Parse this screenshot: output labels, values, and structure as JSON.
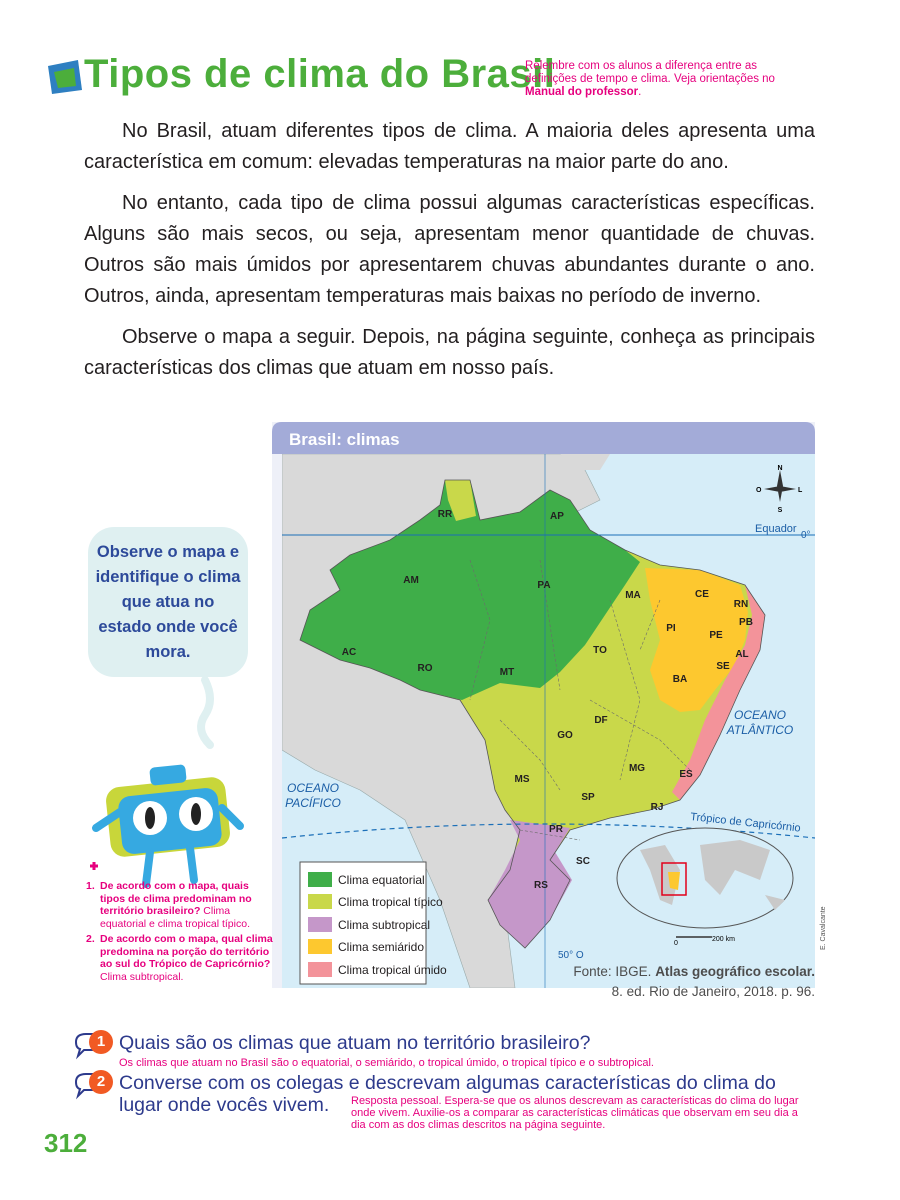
{
  "header": {
    "title": "Tipos de clima do Brasil",
    "teacher_note": "Relembre com os alunos a diferença entre as definições de tempo e clima. Veja orientações no",
    "teacher_note_bold": "Manual do professor",
    "teacher_note_end": "."
  },
  "body": {
    "paragraphs": [
      "No Brasil, atuam diferentes tipos de clima. A maioria deles apresenta uma característica em comum: elevadas temperaturas na maior parte do ano.",
      "No entanto, cada tipo de clima possui algumas características específicas. Alguns são mais secos, ou seja, apresentam menor quantidade de chuvas. Outros são mais úmidos por apresentarem chuvas abundantes durante o ano. Outros, ainda, apresentam temperaturas mais baixas no período de inverno.",
      "Observe o mapa a seguir. Depois, na página seguinte, conheça as principais características dos climas que atuam em nosso país."
    ]
  },
  "map": {
    "title": "Brasil: climas",
    "states": [
      "RR",
      "AP",
      "AM",
      "PA",
      "MA",
      "CE",
      "RN",
      "PB",
      "PI",
      "PE",
      "AL",
      "SE",
      "TO",
      "AC",
      "RO",
      "MT",
      "BA",
      "DF",
      "GO",
      "MG",
      "ES",
      "MS",
      "SP",
      "RJ",
      "PR",
      "SC",
      "RS"
    ],
    "labels": {
      "equator": "Equador",
      "equator_degree": "0°",
      "atlantic": [
        "OCEANO",
        "ATLÂNTICO"
      ],
      "pacific": [
        "OCEANO",
        "PACÍFICO"
      ],
      "tropic": "Trópico de Capricórnio",
      "meridian": "50° O",
      "compass": [
        "N",
        "S",
        "L",
        "O"
      ],
      "scale_start": "0",
      "scale_end": "200 km"
    },
    "legend": [
      "Clima equatorial",
      "Clima tropical típico",
      "Clima subtropical",
      "Clima semiárido",
      "Clima tropical úmido"
    ],
    "credit": "E. Cavalcante",
    "source": {
      "prefix": "Fonte: IBGE.",
      "bold": "Atlas geográfico escolar.",
      "suffix": "8. ed. Rio de Janeiro, 2018. p. 96."
    }
  },
  "sidebar": {
    "bubble": "Observe o mapa e identifique o clima que atua no estado onde você mora.",
    "questions": [
      {
        "number": "1.",
        "question": "De acordo com o mapa, quais tipos de clima predominam no território brasileiro?",
        "answer": "Clima equatorial e clima tropical típico."
      },
      {
        "number": "2.",
        "question": "De acordo com o mapa, qual clima predomina na porção do território ao sul do Trópico de Capricórnio?",
        "answer": "Clima subtropical."
      }
    ]
  },
  "activities": [
    {
      "number": "1",
      "question": "Quais são os climas que atuam no território brasileiro?",
      "answer": "Os climas que atuam no Brasil são o equatorial, o semiárido, o tropical úmido, o tropical típico e o subtropical."
    },
    {
      "number": "2",
      "question": "Converse com os colegas e descrevam algumas características do clima do lugar onde vocês vivem.",
      "answer": "Resposta pessoal. Espera-se que os alunos descrevam as características do clima do lugar onde vivem. Auxilie-os a comparar as características climáticas que observam em seu dia a dia com as dos climas descritos na página seguinte."
    }
  ],
  "page_number": "312"
}
